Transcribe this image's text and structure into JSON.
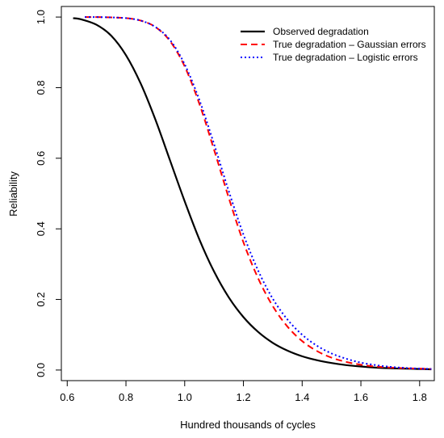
{
  "chart_data": {
    "type": "line",
    "title": "",
    "xlabel": "Hundred thousands of cycles",
    "ylabel": "Reliability",
    "xlim": [
      0.58,
      1.85
    ],
    "ylim": [
      -0.03,
      1.03
    ],
    "x_ticks": [
      0.6,
      0.8,
      1.0,
      1.2,
      1.4,
      1.6,
      1.8
    ],
    "x_tick_labels": [
      "0.6",
      "0.8",
      "1.0",
      "1.2",
      "1.4",
      "1.6",
      "1.8"
    ],
    "y_ticks": [
      0.0,
      0.2,
      0.4,
      0.6,
      0.8,
      1.0
    ],
    "y_tick_labels": [
      "0.0",
      "0.2",
      "0.4",
      "0.6",
      "0.8",
      "1.0"
    ],
    "grid": false,
    "legend_position": "top-right",
    "series": [
      {
        "name": "Observed degradation",
        "color": "#000000",
        "style": "solid",
        "x": [
          0.62,
          0.65,
          0.7,
          0.75,
          0.8,
          0.85,
          0.9,
          0.95,
          1.0,
          1.05,
          1.1,
          1.15,
          1.2,
          1.25,
          1.3,
          1.35,
          1.4,
          1.45,
          1.5,
          1.55,
          1.6,
          1.65,
          1.7,
          1.75,
          1.8,
          1.84
        ],
        "y": [
          0.997,
          0.993,
          0.978,
          0.947,
          0.892,
          0.812,
          0.71,
          0.594,
          0.478,
          0.37,
          0.279,
          0.206,
          0.15,
          0.108,
          0.077,
          0.055,
          0.039,
          0.028,
          0.02,
          0.014,
          0.01,
          0.007,
          0.005,
          0.004,
          0.003,
          0.002
        ]
      },
      {
        "name": "True degradation – Gaussian errors",
        "color": "#ff0000",
        "style": "dashed",
        "x": [
          0.66,
          0.7,
          0.75,
          0.8,
          0.85,
          0.9,
          0.95,
          1.0,
          1.05,
          1.1,
          1.15,
          1.2,
          1.25,
          1.3,
          1.35,
          1.4,
          1.45,
          1.5,
          1.55,
          1.6,
          1.65,
          1.7,
          1.75,
          1.8,
          1.84
        ],
        "y": [
          1.0,
          1.0,
          0.999,
          0.997,
          0.99,
          0.972,
          0.932,
          0.86,
          0.754,
          0.624,
          0.488,
          0.362,
          0.26,
          0.181,
          0.123,
          0.082,
          0.054,
          0.035,
          0.023,
          0.015,
          0.01,
          0.007,
          0.005,
          0.004,
          0.003
        ]
      },
      {
        "name": "True degradation – Logistic errors",
        "color": "#0000ff",
        "style": "dotted",
        "x": [
          0.66,
          0.7,
          0.75,
          0.8,
          0.85,
          0.9,
          0.95,
          1.0,
          1.05,
          1.1,
          1.15,
          1.2,
          1.25,
          1.3,
          1.35,
          1.4,
          1.45,
          1.5,
          1.55,
          1.6,
          1.65,
          1.7,
          1.75,
          1.8,
          1.84
        ],
        "y": [
          1.0,
          1.0,
          0.999,
          0.997,
          0.99,
          0.972,
          0.935,
          0.866,
          0.765,
          0.64,
          0.507,
          0.384,
          0.282,
          0.202,
          0.143,
          0.1,
          0.069,
          0.047,
          0.032,
          0.021,
          0.014,
          0.009,
          0.006,
          0.004,
          0.003
        ]
      }
    ]
  }
}
